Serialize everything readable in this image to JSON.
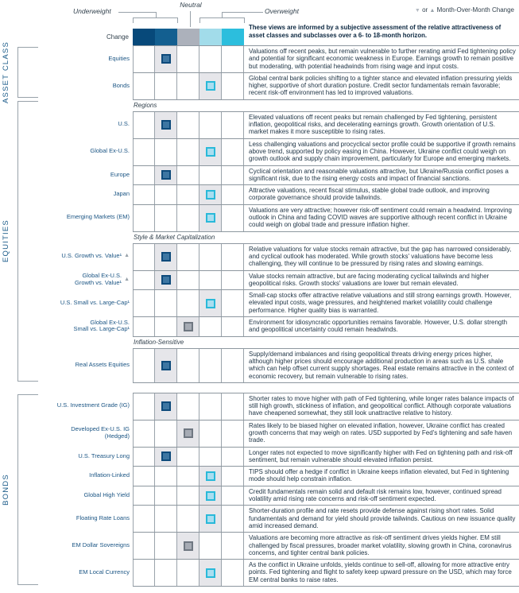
{
  "header": {
    "underweight": "Underweight",
    "neutral": "Neutral",
    "overweight": "Overweight",
    "change": "Change",
    "legend": {
      "down": "▼",
      "or": "or",
      "up": "▲",
      "text": "Month-Over-Month Change"
    },
    "intro": "These views are informed by a subjective assessment of the relative attractiveness of asset classes and subclasses over a 6- to 18-month horizon.",
    "scale_colors": [
      "#07497a",
      "#135f90",
      "#acb1bb",
      "#a2dcea",
      "#2cbedd"
    ]
  },
  "marker_styles": {
    "underweight": {
      "fill": "#3d76a2",
      "border": "#0d4a7b"
    },
    "neutral": {
      "fill": "#a6abb4",
      "border": "#6f7781"
    },
    "overweight": {
      "fill": "#a9def0",
      "border": "#29b9d9"
    }
  },
  "sections": [
    {
      "label": "ASSET CLASS",
      "rows": [
        {
          "type": "data",
          "label": "Equities",
          "trend": null,
          "marker_col": 2,
          "marker": "underweight",
          "comment": "Valuations off recent peaks, but remain vulnerable to further rerating amid Fed tightening policy and potential for significant economic weakness in Europe. Earnings growth to remain positive but moderating, with potential headwinds from rising wage and input costs."
        },
        {
          "type": "data",
          "label": "Bonds",
          "trend": null,
          "marker_col": 4,
          "marker": "overweight",
          "comment": "Global central bank policies shifting to a tighter stance and elevated inflation pressuring yields higher, supportive of short duration posture. Credit sector fundamentals remain favorable; recent risk-off environment has led to improved valuations."
        }
      ]
    },
    {
      "label": "EQUITIES",
      "rows": [
        {
          "type": "subheader",
          "label": "Regions"
        },
        {
          "type": "data",
          "label": "U.S.",
          "trend": null,
          "marker_col": 2,
          "marker": "underweight",
          "comment": "Elevated valuations off recent peaks but remain challenged by Fed tightening, persistent inflation, geopolitical risks, and decelerating earnings growth. Growth orientation of U.S. market makes it more susceptible to rising rates."
        },
        {
          "type": "data",
          "label": "Global Ex-U.S.",
          "trend": null,
          "marker_col": 4,
          "marker": "overweight",
          "comment": "Less challenging valuations and procyclical sector profile could be supportive if growth remains above trend, supported by policy easing in China. However, Ukraine conflict could weigh on growth outlook and supply chain improvement, particularly for Europe and emerging markets."
        },
        {
          "type": "data",
          "label": "Europe",
          "trend": null,
          "marker_col": 2,
          "marker": "underweight",
          "comment": "Cyclical orientation and reasonable valuations attractive, but Ukraine/Russia conflict poses a significant risk, due to the rising energy costs and impact of financial sanctions."
        },
        {
          "type": "data",
          "label": "Japan",
          "trend": null,
          "marker_col": 4,
          "marker": "overweight",
          "comment": "Attractive valuations, recent fiscal stimulus, stable global trade outlook, and improving corporate governance should provide tailwinds."
        },
        {
          "type": "data",
          "label": "Emerging Markets (EM)",
          "trend": null,
          "marker_col": 4,
          "marker": "overweight",
          "comment": "Valuations are very attractive; however risk-off sentiment could remain a headwind. Improving outlook in China and fading COVID waves are supportive although recent conflict in Ukraine could weigh on global trade and pressure inflation higher."
        },
        {
          "type": "subheader",
          "label": "Style & Market Capitalization"
        },
        {
          "type": "data",
          "label": "U.S. Growth vs. Value¹",
          "trend": "up",
          "marker_col": 2,
          "marker": "underweight",
          "comment": "Relative valuations for value stocks remain attractive, but the gap has narrowed considerably, and cyclical outlook has moderated. While growth stocks' valuations have become less challenging, they will continue to be pressured by rising rates and slowing earnings."
        },
        {
          "type": "data",
          "label": "Global Ex-U.S.\nGrowth vs. Value¹",
          "trend": "up",
          "marker_col": 2,
          "marker": "underweight",
          "comment": "Value stocks remain attractive, but are facing moderating cyclical tailwinds and higher geopolitical risks. Growth stocks' valuations are lower but remain elevated."
        },
        {
          "type": "data",
          "label": "U.S. Small vs. Large-Cap¹",
          "trend": null,
          "marker_col": 4,
          "marker": "overweight",
          "comment": "Small-cap stocks offer attractive relative valuations and still strong earnings growth. However, elevated input costs, wage pressures, and heightened market volatility could challenge performance. Higher quality bias is warranted."
        },
        {
          "type": "data",
          "label": "Global Ex-U.S.\nSmall vs. Large-Cap¹",
          "trend": null,
          "marker_col": 3,
          "marker": "neutral",
          "comment": "Environment for idiosyncratic opportunities remains favorable. However, U.S. dollar strength and geopolitical uncertainty could remain headwinds."
        },
        {
          "type": "subheader",
          "label": "Inflation-Sensitive"
        },
        {
          "type": "data",
          "label": "Real Assets Equities",
          "trend": null,
          "marker_col": 2,
          "marker": "underweight",
          "comment": "Supply/demand imbalances and rising geopolitical threats driving energy prices higher, although higher prices should encourage additional production in areas such as U.S. shale which can help offset current supply shortages. Real estate remains attractive in the context of economic recovery, but remain vulnerable to rising rates."
        }
      ]
    },
    {
      "label": "BONDS",
      "rows": [
        {
          "type": "data",
          "label": "U.S. Investment Grade (IG)",
          "trend": null,
          "marker_col": 2,
          "marker": "underweight",
          "comment": "Shorter rates to move higher with path of Fed tightening, while longer rates balance impacts of still high growth, stickiness of inflation, and geopolitical conflict. Although corporate valuations have cheapened somewhat, they still look unattractive relative to history."
        },
        {
          "type": "data",
          "label": "Developed Ex-U.S. IG\n(Hedged)",
          "trend": null,
          "marker_col": 3,
          "marker": "neutral",
          "comment": "Rates likely to be biased higher on elevated inflation, however, Ukraine conflict has created growth concerns that may weigh on rates. USD supported by Fed's tightening and safe haven trade."
        },
        {
          "type": "data",
          "label": "U.S. Treasury Long",
          "trend": null,
          "marker_col": 2,
          "marker": "underweight",
          "comment": "Longer rates not expected to move significantly higher with Fed on tightening path and risk-off sentiment, but remain vulnerable should elevated inflation persist."
        },
        {
          "type": "data",
          "label": "Inflation-Linked",
          "trend": null,
          "marker_col": 4,
          "marker": "overweight",
          "comment": "TIPS should offer a hedge if conflict in Ukraine keeps inflation elevated, but Fed in tightening mode should help constrain inflation."
        },
        {
          "type": "data",
          "label": "Global High Yield",
          "trend": null,
          "marker_col": 4,
          "marker": "overweight",
          "comment": "Credit fundamentals remain solid and default risk remains low, however, continued spread volatility amid rising rate concerns and risk-off sentiment expected."
        },
        {
          "type": "data",
          "label": "Floating Rate Loans",
          "trend": null,
          "marker_col": 4,
          "marker": "overweight",
          "comment": "Shorter-duration profile and rate resets provide defense against rising short rates. Solid fundamentals and demand for yield should provide tailwinds. Cautious on new issuance quality amid increased demand."
        },
        {
          "type": "data",
          "label": "EM Dollar Sovereigns",
          "trend": null,
          "marker_col": 3,
          "marker": "neutral",
          "comment": "Valuations are becoming more attractive as risk-off sentiment drives yields higher. EM still challenged by fiscal pressures, broader market volatility, slowing growth in China, coronavirus concerns, and tighter central bank policies."
        },
        {
          "type": "data",
          "label": "EM Local Currency",
          "trend": null,
          "marker_col": 4,
          "marker": "overweight",
          "comment": "As the conflict in Ukraine unfolds, yields continue to sell-off, allowing for more attractive entry points. Fed tightening and flight to safety keep upward pressure on the USD, which may force EM central banks to raise rates."
        }
      ]
    }
  ]
}
